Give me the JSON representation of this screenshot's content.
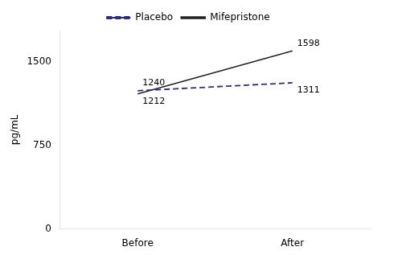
{
  "chart_data": {
    "type": "line",
    "categories": [
      "Before",
      "After"
    ],
    "series": [
      {
        "name": "Placebo",
        "color": "#2b2b8c",
        "line_style": "dashed",
        "values": [
          1240,
          1311
        ]
      },
      {
        "name": "Mifepristone",
        "color": "#222222",
        "line_style": "solid",
        "values": [
          1212,
          1598
        ]
      }
    ],
    "y_label": "pg/mL",
    "ylim": [
      0,
      1780
    ],
    "yticks": [
      0,
      750,
      1500
    ],
    "grid": false,
    "legend": "top",
    "data_labels": true
  }
}
